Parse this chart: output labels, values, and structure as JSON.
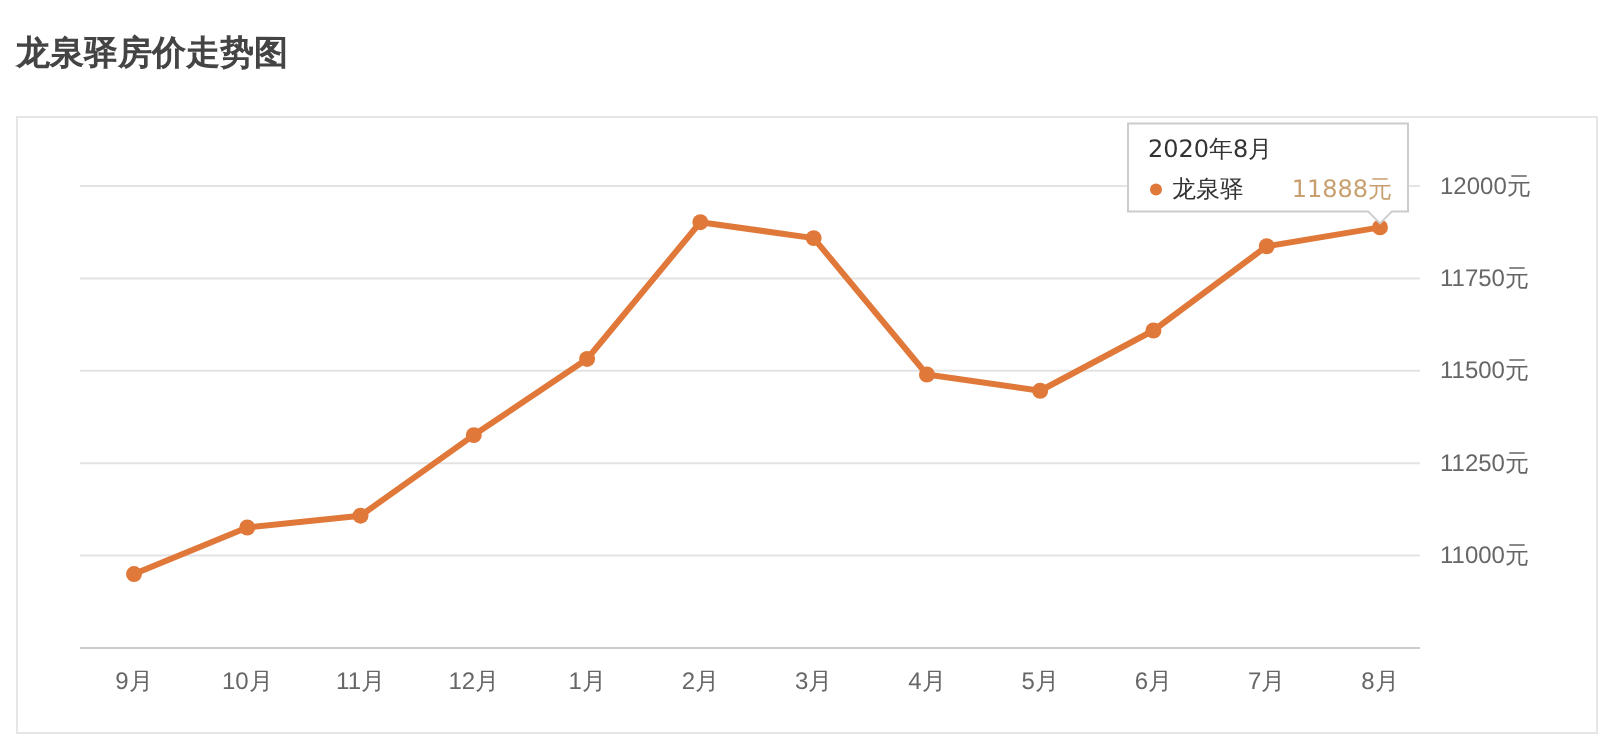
{
  "chart_data": {
    "type": "line",
    "title": "龙泉驿房价走势图",
    "categories": [
      "9月",
      "10月",
      "11月",
      "12月",
      "1月",
      "2月",
      "3月",
      "4月",
      "5月",
      "6月",
      "7月",
      "8月"
    ],
    "series": [
      {
        "name": "龙泉驿",
        "color": "#e0783a",
        "values": [
          10950,
          11076,
          11108,
          11326,
          11532,
          11902,
          11859,
          11490,
          11446,
          11609,
          11837,
          11888
        ],
        "value_labels": [
          null,
          null,
          null,
          null,
          null,
          null,
          null,
          null,
          null,
          null,
          null,
          "11888元"
        ]
      }
    ],
    "ylim": [
      10750,
      12000
    ],
    "yticks": [
      {
        "value": 11000,
        "label": "11000元"
      },
      {
        "value": 11250,
        "label": "11250元"
      },
      {
        "value": 11500,
        "label": "11500元"
      },
      {
        "value": 11750,
        "label": "11750元"
      },
      {
        "value": 12000,
        "label": "12000元"
      }
    ],
    "annotations": [
      "2020年8月"
    ],
    "grid": "y",
    "legend": "top right",
    "marker": "circle",
    "line_style": "solid"
  }
}
